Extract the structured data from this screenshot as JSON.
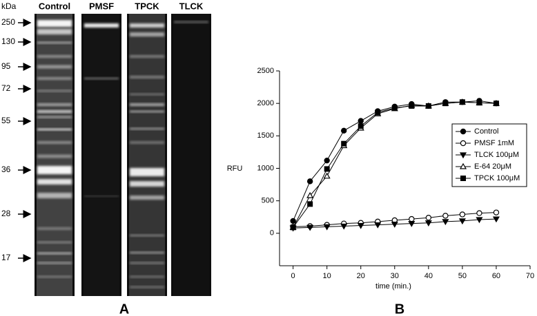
{
  "gel": {
    "unit": "kDa",
    "lanes": [
      "Control",
      "PMSF",
      "TPCK",
      "TLCK"
    ],
    "markers": [
      "250",
      "130",
      "95",
      "72",
      "55",
      "36",
      "28",
      "17"
    ],
    "panel": "A"
  },
  "chart_data": {
    "type": "line",
    "panel": "B",
    "xlabel": "time (min.)",
    "ylabel": "RFU",
    "x": [
      0,
      5,
      10,
      15,
      20,
      25,
      30,
      35,
      40,
      45,
      50,
      55,
      60
    ],
    "series": [
      {
        "name": "Control",
        "color": "#000000",
        "marker": "circle-filled",
        "values": [
          190,
          800,
          1120,
          1580,
          1730,
          1880,
          1950,
          1990,
          1960,
          2020,
          2020,
          2040,
          2000
        ]
      },
      {
        "name": "PMSF 1mM",
        "color": "#000000",
        "marker": "circle-open",
        "values": [
          100,
          110,
          130,
          150,
          160,
          180,
          200,
          220,
          240,
          270,
          290,
          310,
          320
        ]
      },
      {
        "name": "TLCK 100μM",
        "color": "#000000",
        "marker": "triangle-down-filled",
        "values": [
          80,
          90,
          100,
          110,
          120,
          130,
          140,
          150,
          160,
          180,
          190,
          210,
          220
        ]
      },
      {
        "name": "E-64 20μM",
        "color": "#000000",
        "marker": "triangle-up-open",
        "values": [
          90,
          580,
          880,
          1350,
          1620,
          1840,
          1920,
          1970,
          1960,
          2000,
          2020,
          2010,
          2000
        ]
      },
      {
        "name": "TPCK 100μM",
        "color": "#000000",
        "marker": "square-filled",
        "values": [
          90,
          450,
          990,
          1380,
          1650,
          1860,
          1930,
          1960,
          1960,
          2000,
          2020,
          2010,
          2000
        ]
      }
    ],
    "xlim": [
      -4,
      70
    ],
    "xticks": [
      0,
      10,
      20,
      30,
      40,
      50,
      60,
      70
    ],
    "ylim": [
      -500,
      2500
    ],
    "yticks": [
      0,
      500,
      1000,
      1500,
      2000,
      2500
    ],
    "legend": "right",
    "grid": false
  }
}
